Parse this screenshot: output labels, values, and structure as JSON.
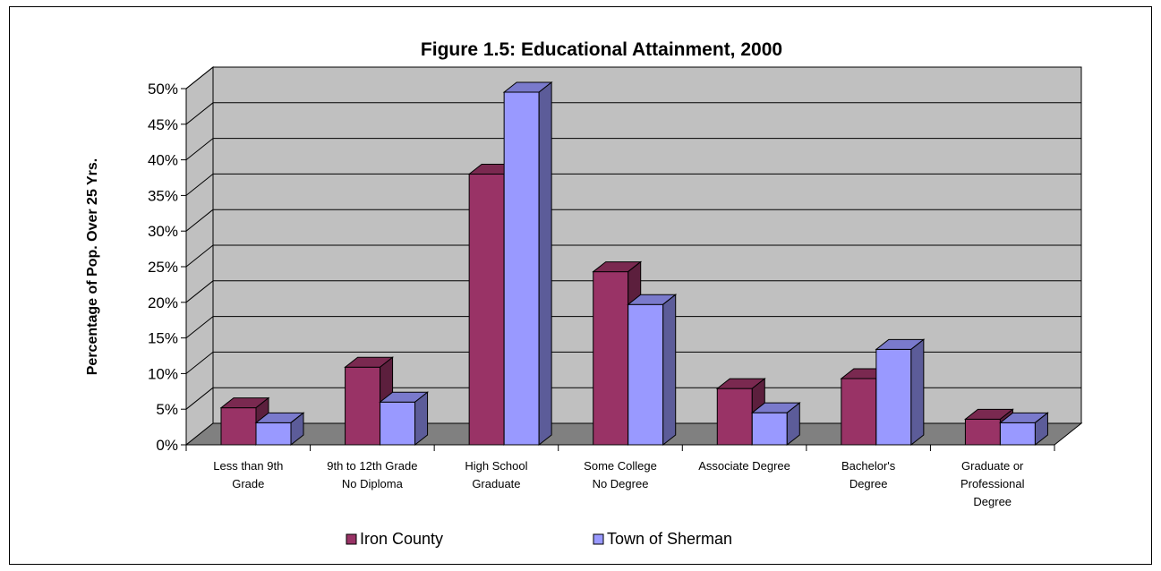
{
  "chart_data": {
    "type": "bar",
    "title": "Figure 1.5: Educational  Attainment,  2000",
    "ylabel": "Percentage of Pop. Over 25 Yrs.",
    "xlabel": "",
    "ylim": [
      0,
      50
    ],
    "yticks": [
      "0%",
      "5%",
      "10%",
      "15%",
      "20%",
      "25%",
      "30%",
      "35%",
      "40%",
      "45%",
      "50%"
    ],
    "categories": [
      [
        "Less than 9th",
        "Grade"
      ],
      [
        "9th to 12th Grade",
        "No Diploma"
      ],
      [
        "High School",
        "Graduate"
      ],
      [
        "Some College",
        "No Degree"
      ],
      [
        "Associate Degree"
      ],
      [
        "Bachelor's",
        "Degree"
      ],
      [
        "Graduate or",
        "Professional",
        "Degree"
      ]
    ],
    "series": [
      {
        "name": "Iron County",
        "values": [
          5.2,
          10.9,
          38.0,
          24.3,
          7.9,
          9.3,
          3.6
        ]
      },
      {
        "name": "Town of Sherman",
        "values": [
          3.1,
          6.0,
          49.5,
          19.7,
          4.5,
          13.4,
          3.1
        ]
      }
    ],
    "grid": true,
    "legend_position": "bottom",
    "colors": {
      "series_front": [
        "#993366",
        "#9999ff"
      ],
      "series_top": [
        "#7a2950",
        "#7a7acc"
      ],
      "series_side": [
        "#5c1f3d",
        "#5c5c99"
      ],
      "wall": "#c0c0c0",
      "floor": "#808080"
    }
  }
}
